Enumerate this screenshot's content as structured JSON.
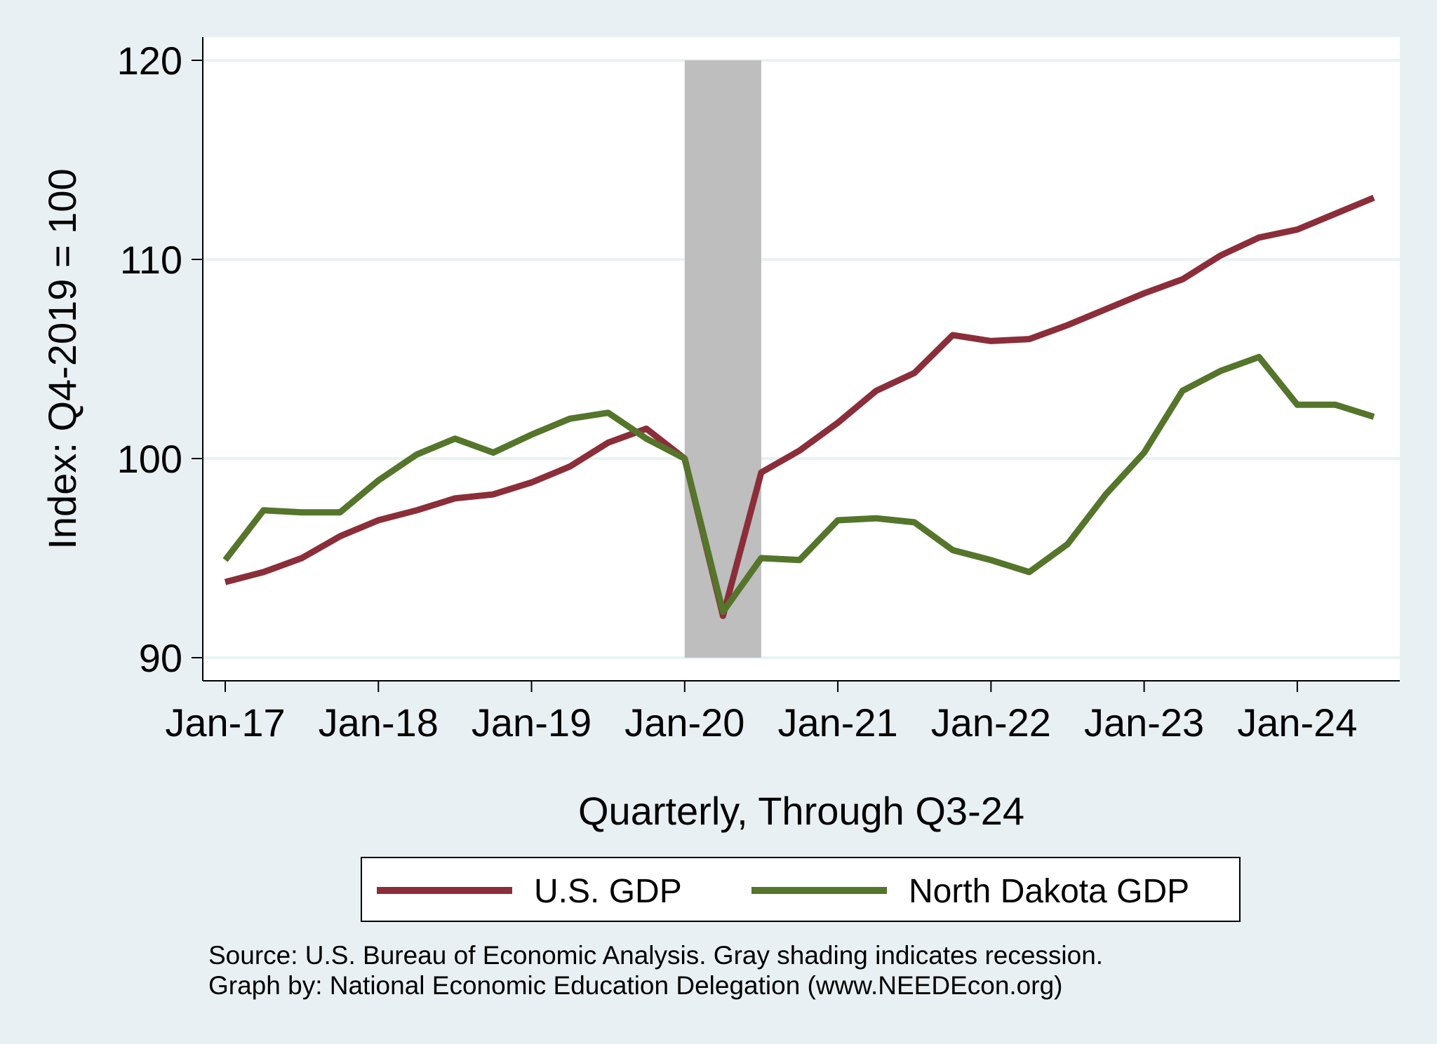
{
  "chart_data": {
    "type": "line",
    "xlabel": "Quarterly, Through Q3-24",
    "ylabel": "Index: Q4-2019 = 100",
    "ylim": [
      90,
      120
    ],
    "yticks": [
      90,
      100,
      110,
      120
    ],
    "xticks": [
      "Jan-17",
      "Jan-18",
      "Jan-19",
      "Jan-20",
      "Jan-21",
      "Jan-22",
      "Jan-23",
      "Jan-24"
    ],
    "x": [
      "2017-01",
      "2017-04",
      "2017-07",
      "2017-10",
      "2018-01",
      "2018-04",
      "2018-07",
      "2018-10",
      "2019-01",
      "2019-04",
      "2019-07",
      "2019-10",
      "2020-01",
      "2020-04",
      "2020-07",
      "2020-10",
      "2021-01",
      "2021-04",
      "2021-07",
      "2021-10",
      "2022-01",
      "2022-04",
      "2022-07",
      "2022-10",
      "2023-01",
      "2023-04",
      "2023-07",
      "2023-10",
      "2024-01",
      "2024-04",
      "2024-07"
    ],
    "series": [
      {
        "name": "U.S. GDP",
        "color": "#8b2e3a",
        "values": [
          93.8,
          94.3,
          95.0,
          96.1,
          96.9,
          97.4,
          98.0,
          98.2,
          98.8,
          99.6,
          100.8,
          101.5,
          100.0,
          92.1,
          99.3,
          100.4,
          101.8,
          103.4,
          104.3,
          106.2,
          105.9,
          106.0,
          106.7,
          107.5,
          108.3,
          109.0,
          110.2,
          111.1,
          111.5,
          112.3,
          113.1
        ]
      },
      {
        "name": "North Dakota GDP",
        "color": "#55752b",
        "values": [
          94.9,
          97.4,
          97.3,
          97.3,
          98.9,
          100.2,
          101.0,
          100.3,
          101.2,
          102.0,
          102.3,
          101.0,
          100.0,
          92.3,
          95.0,
          94.9,
          96.9,
          97.0,
          96.8,
          95.4,
          94.9,
          94.3,
          95.7,
          98.2,
          100.3,
          103.4,
          104.4,
          105.1,
          102.7,
          102.7,
          102.1
        ]
      }
    ],
    "recession": {
      "start": "2020-01",
      "end": "2020-07",
      "color": "#bebebe"
    },
    "grid": true,
    "legend": "bottom",
    "notes": [
      "Source: U.S. Bureau of Economic Analysis. Gray shading indicates recession.",
      "Graph by: National Economic Education Delegation (www.NEEDEcon.org)"
    ]
  }
}
